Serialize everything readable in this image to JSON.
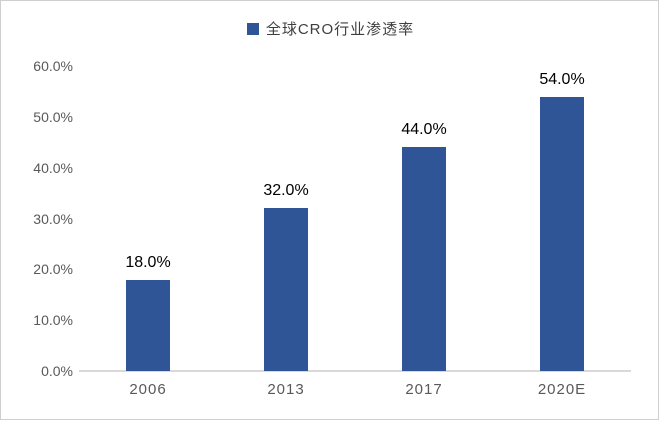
{
  "chart_data": {
    "type": "bar",
    "title": "",
    "legend": "全球CRO行业渗透率",
    "legend_position": "top",
    "categories": [
      "2006",
      "2013",
      "2017",
      "2020E"
    ],
    "values": [
      18.0,
      32.0,
      44.0,
      54.0
    ],
    "data_labels": [
      "18.0%",
      "32.0%",
      "44.0%",
      "54.0%"
    ],
    "y_ticks": [
      {
        "value": 0,
        "label": "0.0%"
      },
      {
        "value": 10,
        "label": "10.0%"
      },
      {
        "value": 20,
        "label": "20.0%"
      },
      {
        "value": 30,
        "label": "30.0%"
      },
      {
        "value": 40,
        "label": "40.0%"
      },
      {
        "value": 50,
        "label": "50.0%"
      },
      {
        "value": 60,
        "label": "60.0%"
      }
    ],
    "ylim": [
      0,
      60
    ],
    "grid": false,
    "xlabel": "",
    "ylabel": ""
  },
  "colors": {
    "bar": "#2F5597",
    "legend_marker": "#2F5597",
    "axis_line": "#D9D9D9",
    "tick_text": "#595959",
    "data_label_text": "#000000",
    "legend_text": "#3F3F3F",
    "frame_border": "#CFCFCF"
  }
}
